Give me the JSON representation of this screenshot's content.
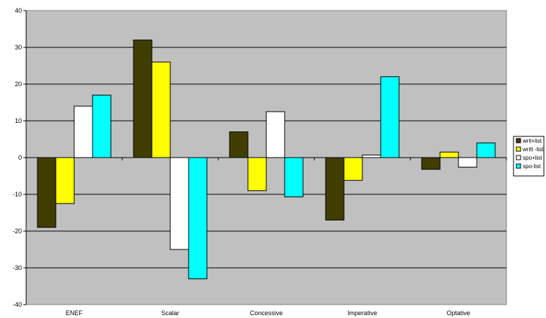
{
  "chart_data": {
    "type": "bar",
    "categories": [
      "ENEF",
      "Scalar",
      "Concessive",
      "Imperative",
      "Optative"
    ],
    "series": [
      {
        "name": "writ+list",
        "color": "#3f3d00",
        "values": [
          -19,
          32,
          7,
          -17,
          -3.2
        ]
      },
      {
        "name": "writt -list",
        "color": "#ffff00",
        "values": [
          -12.5,
          26,
          -9,
          -6.2,
          1.5
        ]
      },
      {
        "name": "spo+list",
        "color": "#ffffff",
        "values": [
          14,
          -25,
          12.5,
          0.7,
          -2.6
        ]
      },
      {
        "name": "spo-list",
        "color": "#00ffff",
        "values": [
          17,
          -33,
          -10.7,
          22,
          4
        ]
      }
    ],
    "ylim": [
      -40,
      40
    ],
    "yticks": [
      40,
      30,
      20,
      10,
      0,
      -10,
      -20,
      -30,
      -40
    ],
    "grid": true,
    "legend_position": "right",
    "plot_background": "#c0c0c0"
  }
}
